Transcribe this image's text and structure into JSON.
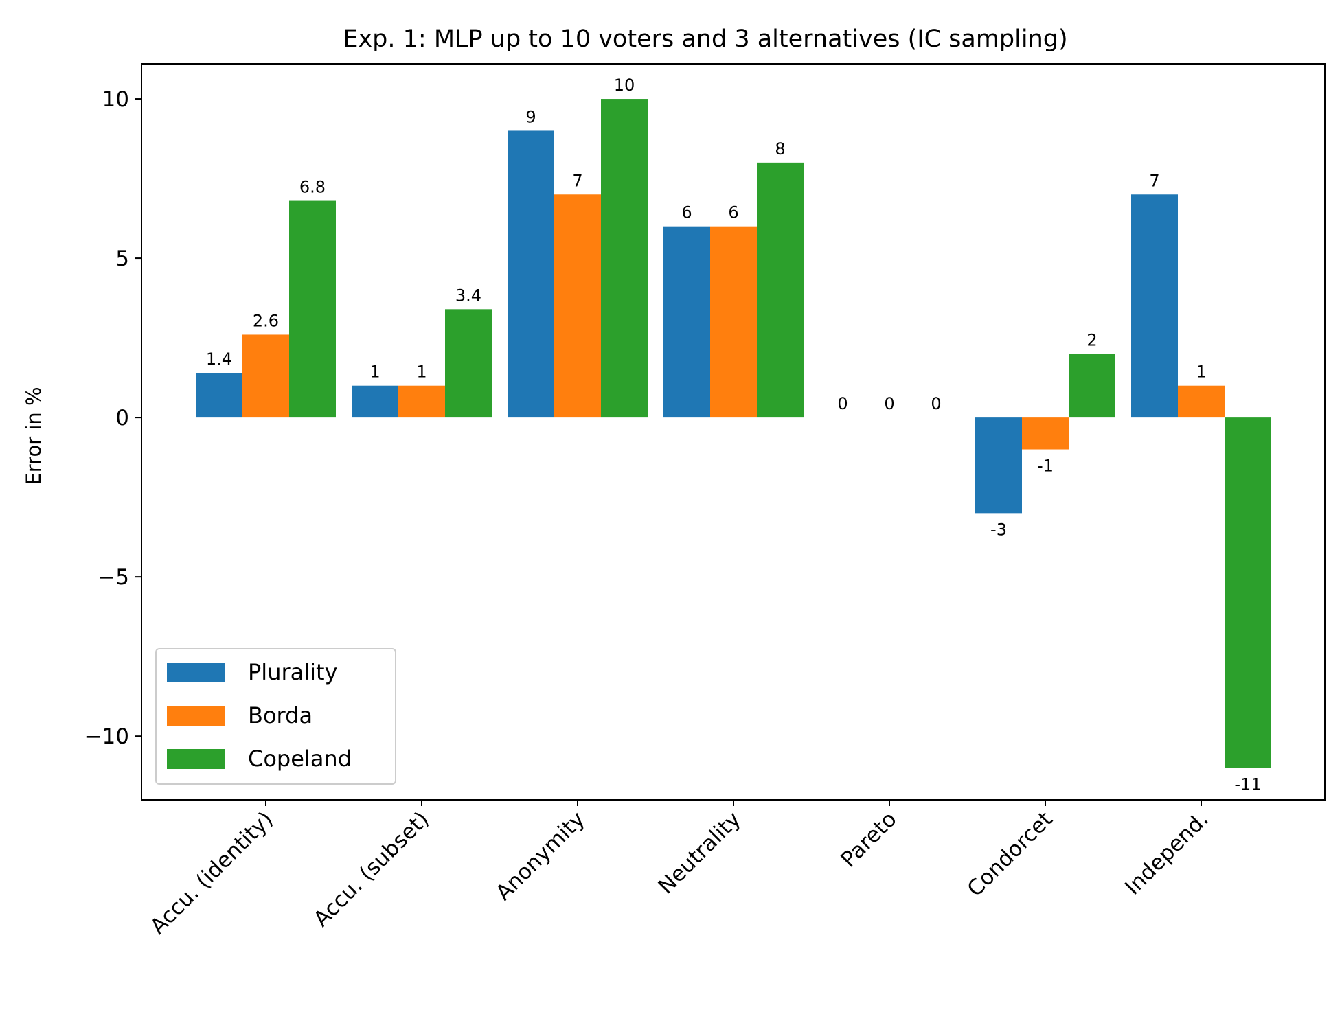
{
  "chart_data": {
    "type": "bar",
    "title": "Exp. 1: MLP up to 10 voters and 3 alternatives (IC sampling)",
    "xlabel": "",
    "ylabel": "Error in %",
    "ylim": [
      -12,
      11.1
    ],
    "yticks": [
      10,
      5,
      0,
      -5,
      -10
    ],
    "ytick_labels": [
      "10",
      "5",
      "0",
      "−5",
      "−10"
    ],
    "categories": [
      "Accu. (identity)",
      "Accu. (subset)",
      "Anonymity",
      "Neutrality",
      "Pareto",
      "Condorcet",
      "Independ."
    ],
    "series": [
      {
        "name": "Plurality",
        "color": "#1f77b4",
        "values": [
          1.4,
          1,
          9,
          6,
          0,
          -3,
          7
        ],
        "labels": [
          "1.4",
          "1",
          "9",
          "6",
          "0",
          "-3",
          "7"
        ]
      },
      {
        "name": "Borda",
        "color": "#ff7f0e",
        "values": [
          2.6,
          1,
          7,
          6,
          0,
          -1,
          1
        ],
        "labels": [
          "2.6",
          "1",
          "7",
          "6",
          "0",
          "-1",
          "1"
        ]
      },
      {
        "name": "Copeland",
        "color": "#2ca02c",
        "values": [
          6.8,
          3.4,
          10,
          8,
          0,
          2,
          -11
        ],
        "labels": [
          "6.8",
          "3.4",
          "10",
          "8",
          "0",
          "2",
          "-11"
        ]
      }
    ],
    "grid": false,
    "legend_position": "lower-left"
  }
}
